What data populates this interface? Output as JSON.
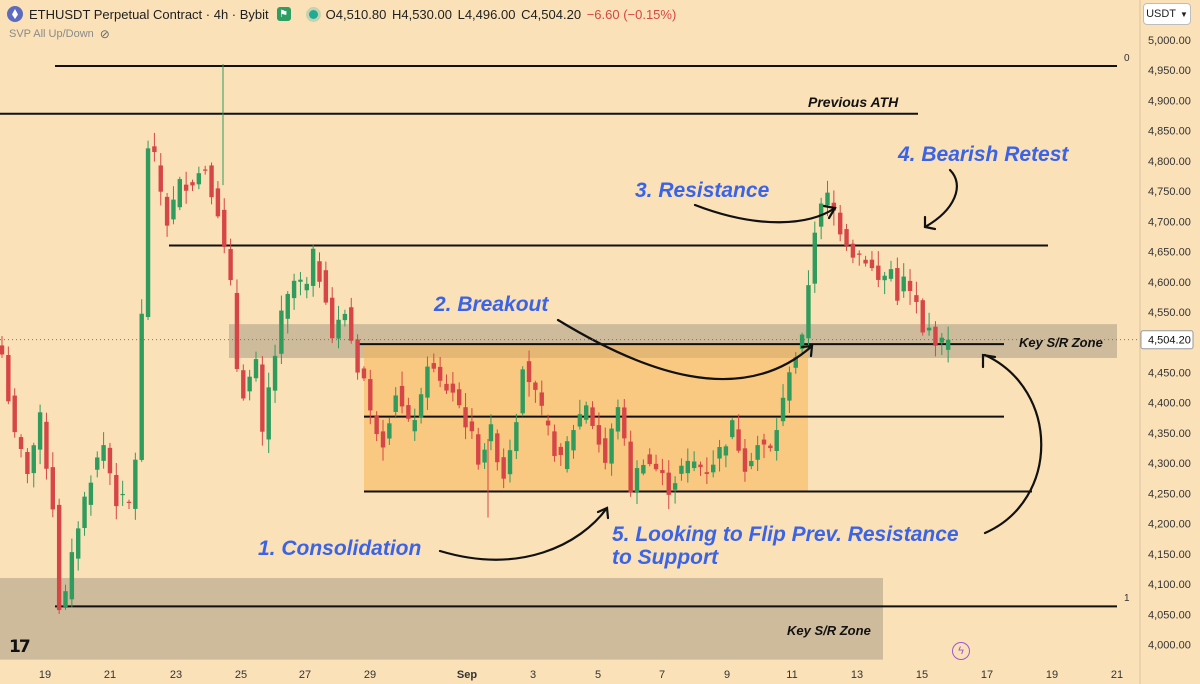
{
  "header": {
    "symbol": "ETHUSDT Perpetual Contract · 4h · Bybit",
    "open": "O4,510.80",
    "high": "H4,530.00",
    "low": "L4,496.00",
    "close": "C4,504.20",
    "change": "−6.60 (−0.15%)",
    "indicator": "SVP All Up/Down",
    "currency": "USDT",
    "currency_menu_icon": "chevron-down-icon"
  },
  "chart_data": {
    "type": "candlestick",
    "price_axis": {
      "ticks": [
        "5,000.00",
        "4,950.00",
        "4,900.00",
        "4,850.00",
        "4,800.00",
        "4,750.00",
        "4,700.00",
        "4,650.00",
        "4,600.00",
        "4,550.00",
        "4,500.00",
        "4,450.00",
        "4,400.00",
        "4,350.00",
        "4,300.00",
        "4,250.00",
        "4,200.00",
        "4,150.00",
        "4,100.00",
        "4,050.00",
        "4,000.00"
      ],
      "ylim": [
        3975,
        5010
      ],
      "last_price": "4,504.20"
    },
    "time_axis": {
      "ticks": [
        "19",
        "21",
        "23",
        "25",
        "27",
        "29",
        "Sep",
        "3",
        "5",
        "7",
        "9",
        "11",
        "13",
        "15",
        "17",
        "19",
        "21"
      ],
      "xlim": [
        0,
        172
      ]
    },
    "colors": {
      "up": "#2f9b5d",
      "down": "#d64646",
      "bg": "#fae1b8",
      "zone": "#a89c85",
      "consolidation": "#f7b553",
      "annotation": "#3a63e6"
    },
    "fib_labels": [
      "0",
      "1"
    ],
    "levels": [
      {
        "label": "Previous ATH",
        "price": 4878
      },
      {
        "label": "",
        "price": 4957
      },
      {
        "label": "",
        "price": 4660
      },
      {
        "label": "",
        "price": 4497
      },
      {
        "label": "",
        "price": 4377
      },
      {
        "label": "",
        "price": 4253
      },
      {
        "label": "",
        "price": 4063
      }
    ],
    "zones": [
      {
        "label": "Key S/R Zone",
        "top": 4530,
        "bottom": 4474
      },
      {
        "label": "Key S/R Zone",
        "top": 4110,
        "bottom": 3975
      }
    ],
    "consolidation_box": {
      "top": 4497,
      "bottom": 4253
    },
    "annotations": [
      "1. Consolidation",
      "2. Breakout",
      "3. Resistance",
      "4. Bearish Retest",
      "5. Looking to Flip Prev. Resistance",
      "to Support"
    ],
    "anchors": [
      {
        "i": 0,
        "p": 4480
      },
      {
        "i": 2,
        "p": 4340
      },
      {
        "i": 4,
        "p": 4290
      },
      {
        "i": 6,
        "p": 4370
      },
      {
        "i": 8,
        "p": 4230
      },
      {
        "i": 9,
        "p": 4065
      },
      {
        "i": 10,
        "p": 4080
      },
      {
        "i": 12,
        "p": 4200
      },
      {
        "i": 14,
        "p": 4280
      },
      {
        "i": 16,
        "p": 4330
      },
      {
        "i": 18,
        "p": 4240
      },
      {
        "i": 20,
        "p": 4230
      },
      {
        "i": 21,
        "p": 4310
      },
      {
        "i": 22,
        "p": 4540
      },
      {
        "i": 23,
        "p": 4825
      },
      {
        "i": 24,
        "p": 4800
      },
      {
        "i": 26,
        "p": 4700
      },
      {
        "i": 28,
        "p": 4760
      },
      {
        "i": 30,
        "p": 4770
      },
      {
        "i": 32,
        "p": 4790
      },
      {
        "i": 34,
        "p": 4720
      },
      {
        "i": 35,
        "p": 4650
      },
      {
        "i": 36,
        "p": 4590
      },
      {
        "i": 37,
        "p": 4460
      },
      {
        "i": 38,
        "p": 4420
      },
      {
        "i": 40,
        "p": 4460
      },
      {
        "i": 41,
        "p": 4340
      },
      {
        "i": 42,
        "p": 4420
      },
      {
        "i": 44,
        "p": 4540
      },
      {
        "i": 46,
        "p": 4600
      },
      {
        "i": 48,
        "p": 4590
      },
      {
        "i": 49,
        "p": 4640
      },
      {
        "i": 51,
        "p": 4580
      },
      {
        "i": 52,
        "p": 4510
      },
      {
        "i": 54,
        "p": 4550
      },
      {
        "i": 56,
        "p": 4460
      },
      {
        "i": 57,
        "p": 4440
      },
      {
        "i": 58,
        "p": 4380
      },
      {
        "i": 60,
        "p": 4340
      },
      {
        "i": 62,
        "p": 4420
      },
      {
        "i": 64,
        "p": 4360
      },
      {
        "i": 66,
        "p": 4400
      },
      {
        "i": 67,
        "p": 4470
      },
      {
        "i": 69,
        "p": 4430
      },
      {
        "i": 71,
        "p": 4420
      },
      {
        "i": 73,
        "p": 4370
      },
      {
        "i": 75,
        "p": 4310
      },
      {
        "i": 77,
        "p": 4350
      },
      {
        "i": 79,
        "p": 4280
      },
      {
        "i": 81,
        "p": 4380
      },
      {
        "i": 82,
        "p": 4470
      },
      {
        "i": 84,
        "p": 4410
      },
      {
        "i": 86,
        "p": 4350
      },
      {
        "i": 88,
        "p": 4300
      },
      {
        "i": 90,
        "p": 4360
      },
      {
        "i": 92,
        "p": 4400
      },
      {
        "i": 95,
        "p": 4300
      },
      {
        "i": 97,
        "p": 4400
      },
      {
        "i": 99,
        "p": 4260
      },
      {
        "i": 101,
        "p": 4310
      },
      {
        "i": 103,
        "p": 4290
      },
      {
        "i": 105,
        "p": 4260
      },
      {
        "i": 107,
        "p": 4290
      },
      {
        "i": 109,
        "p": 4300
      },
      {
        "i": 111,
        "p": 4290
      },
      {
        "i": 113,
        "p": 4320
      },
      {
        "i": 115,
        "p": 4360
      },
      {
        "i": 117,
        "p": 4300
      },
      {
        "i": 119,
        "p": 4330
      },
      {
        "i": 121,
        "p": 4320
      },
      {
        "i": 123,
        "p": 4400
      },
      {
        "i": 124,
        "p": 4460
      },
      {
        "i": 126,
        "p": 4500
      },
      {
        "i": 127,
        "p": 4600
      },
      {
        "i": 128,
        "p": 4690
      },
      {
        "i": 129,
        "p": 4720
      },
      {
        "i": 130,
        "p": 4740
      },
      {
        "i": 132,
        "p": 4690
      },
      {
        "i": 134,
        "p": 4650
      },
      {
        "i": 136,
        "p": 4640
      },
      {
        "i": 138,
        "p": 4600
      },
      {
        "i": 140,
        "p": 4620
      },
      {
        "i": 141,
        "p": 4580
      },
      {
        "i": 142,
        "p": 4600
      },
      {
        "i": 144,
        "p": 4560
      },
      {
        "i": 145,
        "p": 4510
      },
      {
        "i": 146,
        "p": 4520
      },
      {
        "i": 148,
        "p": 4495
      },
      {
        "i": 149,
        "p": 4504.2
      }
    ]
  }
}
